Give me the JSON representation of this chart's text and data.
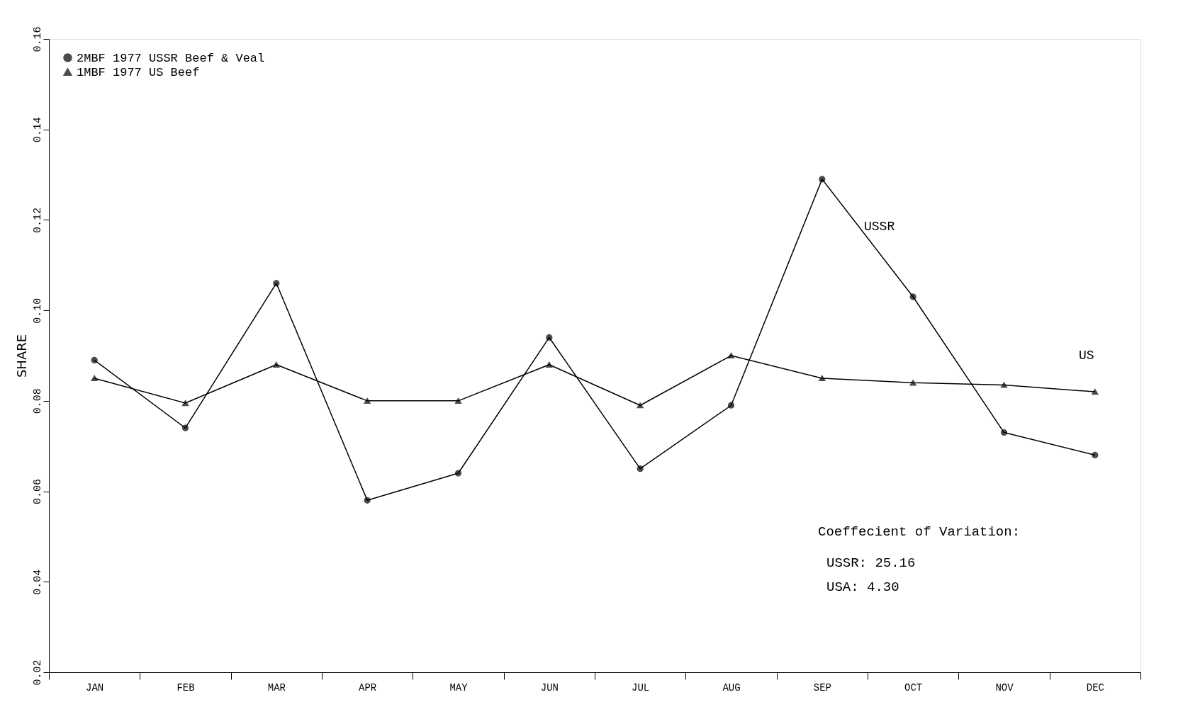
{
  "chart_data": {
    "type": "line",
    "ylabel": "SHARE",
    "categories": [
      "JAN",
      "FEB",
      "MAR",
      "APR",
      "MAY",
      "JUN",
      "JUL",
      "AUG",
      "SEP",
      "OCT",
      "NOV",
      "DEC"
    ],
    "ylim": [
      0.02,
      0.16
    ],
    "yticks": [
      {
        "value": 0.02,
        "label": "0.02"
      },
      {
        "value": 0.04,
        "label": "0.04"
      },
      {
        "value": 0.06,
        "label": "0.06"
      },
      {
        "value": 0.08,
        "label": "0.08"
      },
      {
        "value": 0.1,
        "label": "0.10"
      },
      {
        "value": 0.12,
        "label": "0.12"
      },
      {
        "value": 0.14,
        "label": "0.14"
      },
      {
        "value": 0.16,
        "label": "0.16"
      }
    ],
    "grid": false,
    "legend": "top left",
    "series": [
      {
        "name": "2MBF 1977 USSR Beef & Veal",
        "color": "#000000",
        "marker": "circle",
        "values": [
          0.089,
          0.074,
          0.106,
          0.058,
          0.064,
          0.094,
          0.065,
          0.079,
          0.129,
          0.103,
          0.073,
          0.068
        ]
      },
      {
        "name": "1MBF 1977 US Beef",
        "color": "#000000",
        "marker": "triangle",
        "values": [
          0.085,
          0.0795,
          0.088,
          0.08,
          0.08,
          0.088,
          0.079,
          0.09,
          0.085,
          0.084,
          0.0835,
          0.082
        ]
      }
    ],
    "annotations": [
      "USSR",
      "US",
      "Coeffecient of Variation:",
      "USSR: 25.16",
      "USA:   4.30"
    ]
  }
}
